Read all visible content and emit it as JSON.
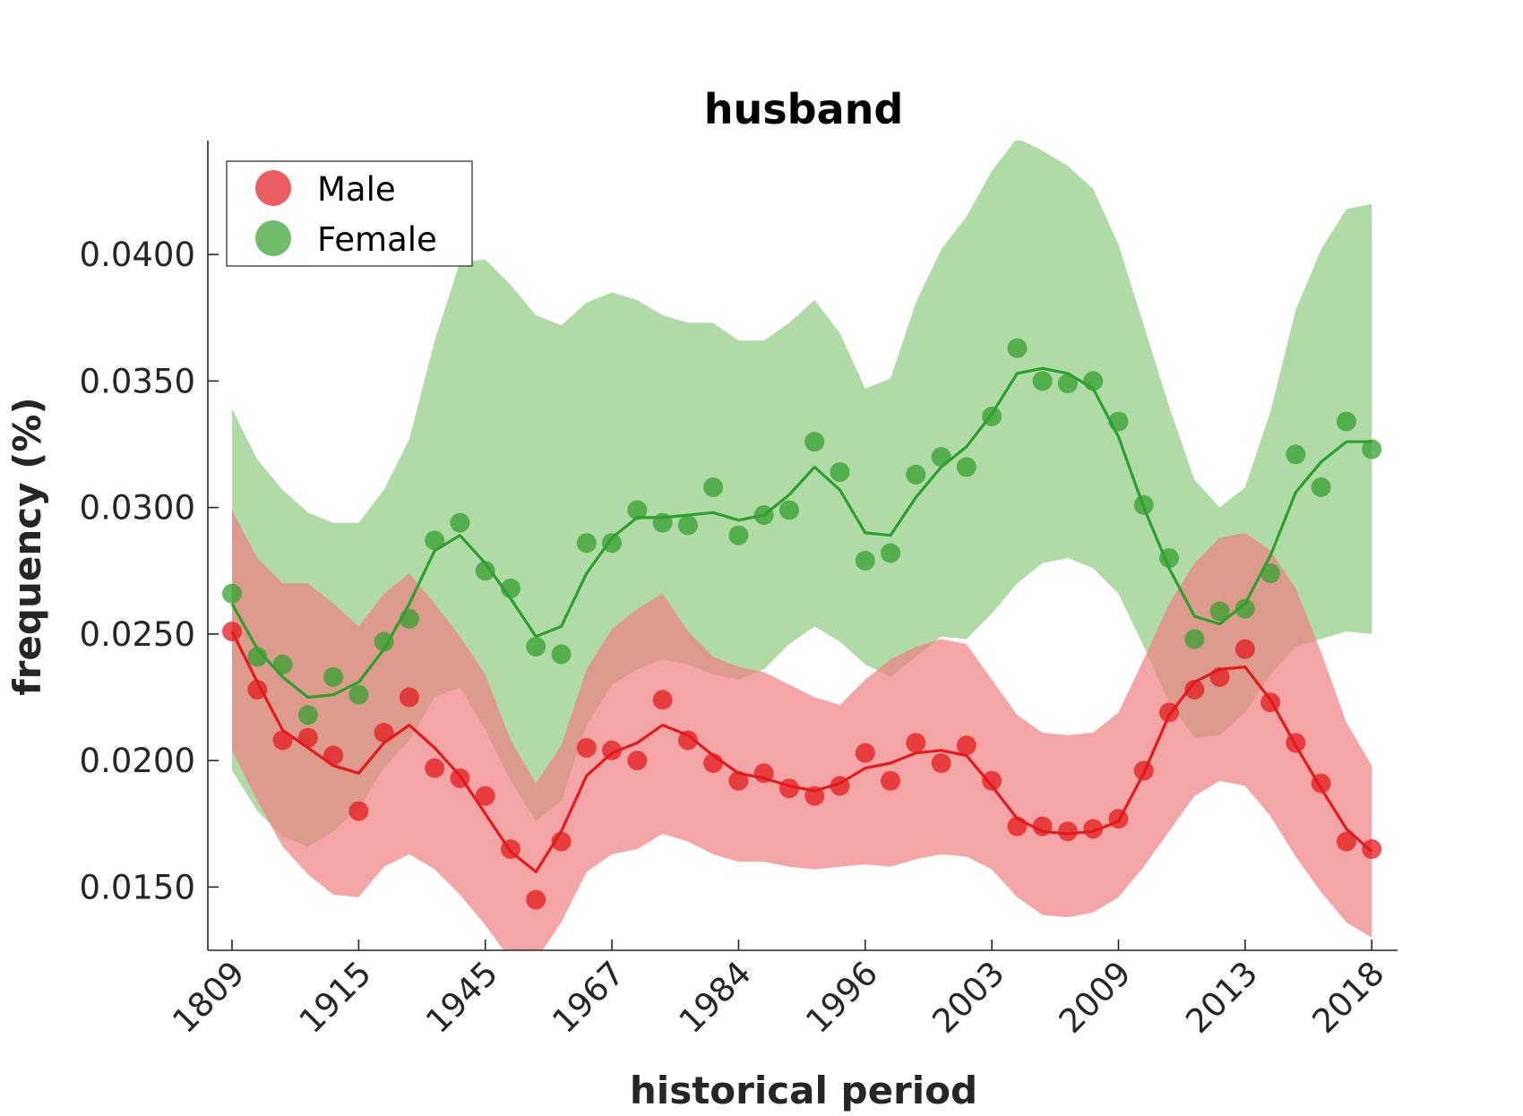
{
  "chart_data": {
    "type": "line",
    "title": "husband",
    "xlabel": "historical period",
    "ylabel": "frequency (%)",
    "x_tick_labels": [
      "1809",
      "1915",
      "1945",
      "1967",
      "1984",
      "1996",
      "2003",
      "2009",
      "2013",
      "2018"
    ],
    "y_ticks": [
      0.015,
      0.02,
      0.025,
      0.03,
      0.035,
      0.04
    ],
    "y_tick_labels": [
      "0.0150",
      "0.0200",
      "0.0250",
      "0.0300",
      "0.0350",
      "0.0400"
    ],
    "ylim": [
      0.0125,
      0.0445
    ],
    "x_count": 46,
    "legend": {
      "position": "top-left",
      "entries": [
        "Male",
        "Female"
      ]
    },
    "grid": false,
    "series": [
      {
        "name": "Male",
        "color": "#e41a1c",
        "point_color": "#e31a1c",
        "band_color": "#f08080",
        "points": [
          0.0251,
          0.0228,
          0.0208,
          0.0209,
          0.0202,
          0.018,
          0.0211,
          0.0225,
          0.0197,
          0.0193,
          0.0186,
          0.0165,
          0.0145,
          0.0168,
          0.0205,
          0.0204,
          0.02,
          0.0224,
          0.0208,
          0.0199,
          0.0192,
          0.0195,
          0.0189,
          0.0186,
          0.019,
          0.0203,
          0.0192,
          0.0207,
          0.0199,
          0.0206,
          0.0192,
          0.0174,
          0.0174,
          0.0172,
          0.0173,
          0.0177,
          0.0196,
          0.0219,
          0.0228,
          0.0233,
          0.0244,
          0.0223,
          0.0207,
          0.0191,
          0.0168,
          0.0165
        ],
        "smooth": [
          0.0251,
          0.0231,
          0.0212,
          0.0205,
          0.0198,
          0.0195,
          0.0207,
          0.0214,
          0.0205,
          0.0194,
          0.0179,
          0.0164,
          0.0156,
          0.0172,
          0.0194,
          0.0203,
          0.0207,
          0.0214,
          0.021,
          0.0202,
          0.0195,
          0.0193,
          0.019,
          0.0188,
          0.0191,
          0.0197,
          0.0199,
          0.0203,
          0.0204,
          0.0202,
          0.019,
          0.0177,
          0.0172,
          0.0171,
          0.0172,
          0.0176,
          0.0195,
          0.0218,
          0.0231,
          0.0236,
          0.0237,
          0.0224,
          0.0206,
          0.0189,
          0.0173,
          0.0164
        ],
        "upper": [
          0.0299,
          0.028,
          0.027,
          0.027,
          0.0262,
          0.0253,
          0.0266,
          0.0274,
          0.0262,
          0.0249,
          0.0234,
          0.0208,
          0.0191,
          0.0206,
          0.0236,
          0.0252,
          0.026,
          0.0266,
          0.0251,
          0.0241,
          0.0237,
          0.0235,
          0.023,
          0.0225,
          0.0222,
          0.0232,
          0.024,
          0.0245,
          0.0248,
          0.0246,
          0.0232,
          0.0218,
          0.0211,
          0.021,
          0.0211,
          0.0219,
          0.024,
          0.0262,
          0.0278,
          0.0288,
          0.029,
          0.0283,
          0.0268,
          0.0243,
          0.0215,
          0.0198
        ],
        "lower": [
          0.0204,
          0.0184,
          0.0166,
          0.0155,
          0.0147,
          0.0146,
          0.0158,
          0.0163,
          0.0157,
          0.0147,
          0.0135,
          0.0121,
          0.0121,
          0.0136,
          0.0156,
          0.0163,
          0.0165,
          0.0171,
          0.0168,
          0.0163,
          0.016,
          0.016,
          0.0158,
          0.0157,
          0.0158,
          0.0159,
          0.0158,
          0.0161,
          0.0163,
          0.0162,
          0.0157,
          0.0146,
          0.0139,
          0.0138,
          0.014,
          0.0146,
          0.0158,
          0.0172,
          0.0186,
          0.0192,
          0.019,
          0.0178,
          0.0162,
          0.0148,
          0.0136,
          0.013
        ]
      },
      {
        "name": "Female",
        "color": "#2ca02c",
        "point_color": "#33a02c",
        "band_color": "#8fcc81",
        "points": [
          0.0266,
          0.0241,
          0.0238,
          0.0218,
          0.0233,
          0.0226,
          0.0247,
          0.0256,
          0.0287,
          0.0294,
          0.0275,
          0.0268,
          0.0245,
          0.0242,
          0.0286,
          0.0286,
          0.0299,
          0.0294,
          0.0293,
          0.0308,
          0.0289,
          0.0297,
          0.0299,
          0.0326,
          0.0314,
          0.0279,
          0.0282,
          0.0313,
          0.032,
          0.0316,
          0.0336,
          0.0363,
          0.035,
          0.0349,
          0.035,
          0.0334,
          0.0301,
          0.028,
          0.0248,
          0.0259,
          0.026,
          0.0274,
          0.0321,
          0.0308,
          0.0334,
          0.0323
        ],
        "smooth": [
          0.0262,
          0.0244,
          0.0233,
          0.0225,
          0.0226,
          0.0231,
          0.0244,
          0.0262,
          0.0283,
          0.0289,
          0.0278,
          0.0264,
          0.0249,
          0.0253,
          0.0274,
          0.0288,
          0.0296,
          0.0296,
          0.0297,
          0.0298,
          0.0295,
          0.0297,
          0.0305,
          0.0316,
          0.0307,
          0.029,
          0.0289,
          0.0304,
          0.0316,
          0.0324,
          0.0337,
          0.0353,
          0.0355,
          0.0353,
          0.0347,
          0.0328,
          0.03,
          0.0276,
          0.0257,
          0.0254,
          0.0262,
          0.0281,
          0.0306,
          0.0318,
          0.0326,
          0.0326
        ],
        "upper": [
          0.0339,
          0.0319,
          0.0307,
          0.0298,
          0.0294,
          0.0294,
          0.0307,
          0.0327,
          0.0366,
          0.0397,
          0.0398,
          0.0388,
          0.0376,
          0.0372,
          0.0381,
          0.0385,
          0.0382,
          0.0376,
          0.0373,
          0.0373,
          0.0366,
          0.0366,
          0.0373,
          0.0382,
          0.0369,
          0.0347,
          0.0351,
          0.0381,
          0.0402,
          0.0415,
          0.0433,
          0.0446,
          0.0441,
          0.0435,
          0.0426,
          0.0404,
          0.0372,
          0.034,
          0.0311,
          0.03,
          0.0308,
          0.0338,
          0.0378,
          0.0402,
          0.0418,
          0.042
        ],
        "lower": [
          0.0196,
          0.018,
          0.017,
          0.0166,
          0.0172,
          0.0181,
          0.0197,
          0.0208,
          0.0225,
          0.0229,
          0.0212,
          0.0192,
          0.0176,
          0.0184,
          0.0214,
          0.023,
          0.0236,
          0.024,
          0.0238,
          0.0234,
          0.0232,
          0.0236,
          0.0246,
          0.0253,
          0.0247,
          0.0238,
          0.0233,
          0.0241,
          0.0249,
          0.0248,
          0.0258,
          0.027,
          0.0278,
          0.028,
          0.0276,
          0.0266,
          0.0245,
          0.0223,
          0.0209,
          0.021,
          0.0219,
          0.0234,
          0.0245,
          0.0248,
          0.0251,
          0.025
        ]
      }
    ]
  }
}
